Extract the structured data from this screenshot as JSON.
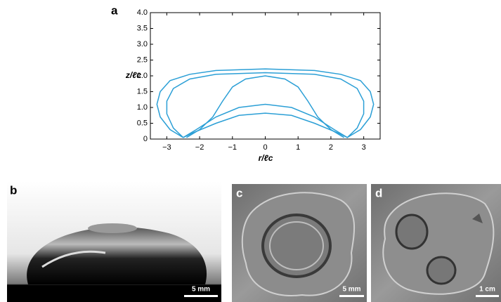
{
  "chart_data": {
    "type": "line",
    "panel": "a",
    "xlabel": "r/ℓc",
    "ylabel": "z/ℓc",
    "xlim": [
      -3.5,
      3.5
    ],
    "ylim": [
      0,
      4
    ],
    "xticks": [
      {
        "value": -3,
        "label": "−3"
      },
      {
        "value": -2,
        "label": "−2"
      },
      {
        "value": -1,
        "label": "−1"
      },
      0,
      1,
      2,
      3
    ],
    "yticks": [
      0,
      {
        "value": 0.5,
        "label": "0.5"
      },
      {
        "value": 1,
        "label": "1.0"
      },
      {
        "value": 1.5,
        "label": "1.5"
      },
      {
        "value": 2,
        "label": "2.0"
      },
      {
        "value": 2.5,
        "label": "2.5"
      },
      {
        "value": 3,
        "label": "3.0"
      },
      {
        "value": 3.5,
        "label": "3.5"
      },
      {
        "value": 4,
        "label": "4.0"
      }
    ],
    "series": [
      {
        "color": "#2b9fd6",
        "x": [
          -2.5,
          -2.9,
          -3.2,
          -3.3,
          -3.2,
          -2.9,
          -2.3,
          -1.5,
          0,
          1.5,
          2.3,
          2.9,
          3.2,
          3.3,
          3.2,
          2.9,
          2.5,
          2.2,
          1.5,
          0.8,
          0,
          -0.8,
          -1.5,
          -2.2,
          -2.5
        ],
        "values": [
          0.05,
          0.3,
          0.7,
          1.1,
          1.5,
          1.85,
          2.05,
          2.17,
          2.22,
          2.17,
          2.05,
          1.85,
          1.5,
          1.1,
          0.7,
          0.3,
          0.05,
          0.2,
          0.5,
          0.75,
          0.82,
          0.75,
          0.5,
          0.2,
          0.05
        ]
      },
      {
        "color": "#2b9fd6",
        "x": [
          -2.5,
          -2.8,
          -3.0,
          -3.0,
          -2.8,
          -2.3,
          -1.5,
          0,
          1.5,
          2.3,
          2.8,
          3.0,
          3.0,
          2.8,
          2.5,
          2.1,
          1.5,
          0.8,
          0,
          -0.8,
          -1.5,
          -2.1,
          -2.5
        ],
        "values": [
          0.05,
          0.35,
          0.8,
          1.2,
          1.6,
          1.9,
          2.05,
          2.1,
          2.05,
          1.9,
          1.6,
          1.2,
          0.8,
          0.35,
          0.05,
          0.3,
          0.7,
          1.0,
          1.1,
          1.0,
          0.7,
          0.3,
          0.05
        ]
      },
      {
        "color": "#2b9fd6",
        "x": [
          -2.4,
          -2.0,
          -1.6,
          -1.3,
          -1.0,
          -0.6,
          0,
          0.6,
          1.0,
          1.3,
          1.6,
          2.0,
          2.4
        ],
        "values": [
          0.05,
          0.3,
          0.7,
          1.2,
          1.65,
          1.9,
          2.0,
          1.9,
          1.65,
          1.2,
          0.7,
          0.3,
          0.05
        ]
      }
    ]
  },
  "photos": [
    {
      "panel": "b",
      "scale_bar": "5 mm"
    },
    {
      "panel": "c",
      "scale_bar": "5 mm"
    },
    {
      "panel": "d",
      "scale_bar": "1 cm"
    }
  ]
}
